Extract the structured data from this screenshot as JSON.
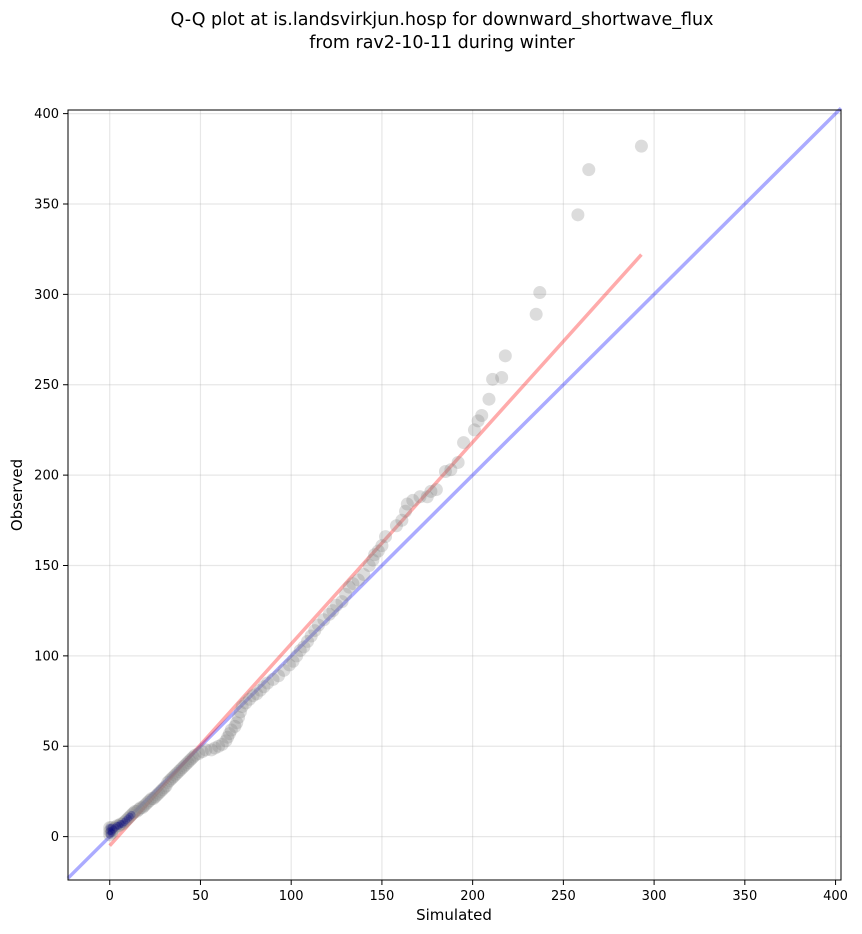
{
  "chart_data": {
    "type": "scatter",
    "title": [
      "Q-Q plot at is.landsvirkjun.hosp for downward_shortwave_flux",
      "from rav2-10-11 during winter"
    ],
    "xlabel": "Simulated",
    "ylabel": "Observed",
    "xlim": [
      -23,
      403
    ],
    "ylim": [
      -24,
      402
    ],
    "xticks": [
      0,
      50,
      100,
      150,
      200,
      250,
      300,
      350,
      400
    ],
    "yticks": [
      0,
      50,
      100,
      150,
      200,
      250,
      300,
      350,
      400
    ],
    "grid": true,
    "reference_line": {
      "name": "1:1",
      "color": "#0000ff",
      "x": [
        -23,
        403
      ],
      "y": [
        -23,
        403
      ]
    },
    "fit_line": {
      "color": "#ff0000",
      "x": [
        0,
        293
      ],
      "y": [
        -5,
        322
      ]
    },
    "points_color": "#808080",
    "low_value_color": "#000080",
    "points": [
      [
        0,
        1
      ],
      [
        1,
        2
      ],
      [
        0,
        3
      ],
      [
        1,
        3
      ],
      [
        2,
        4
      ],
      [
        0,
        5
      ],
      [
        1,
        5
      ],
      [
        3,
        5
      ],
      [
        4,
        6
      ],
      [
        5,
        6
      ],
      [
        6,
        7
      ],
      [
        7,
        7
      ],
      [
        8,
        8
      ],
      [
        9,
        9
      ],
      [
        10,
        10
      ],
      [
        11,
        11
      ],
      [
        12,
        12
      ],
      [
        13,
        13
      ],
      [
        14,
        14
      ],
      [
        15,
        14
      ],
      [
        16,
        15
      ],
      [
        17,
        16
      ],
      [
        18,
        16
      ],
      [
        19,
        17
      ],
      [
        20,
        18
      ],
      [
        21,
        19
      ],
      [
        22,
        20
      ],
      [
        23,
        21
      ],
      [
        24,
        21
      ],
      [
        25,
        22
      ],
      [
        26,
        23
      ],
      [
        27,
        24
      ],
      [
        28,
        25
      ],
      [
        29,
        26
      ],
      [
        30,
        27
      ],
      [
        31,
        28
      ],
      [
        32,
        30
      ],
      [
        33,
        31
      ],
      [
        34,
        32
      ],
      [
        35,
        33
      ],
      [
        36,
        34
      ],
      [
        37,
        35
      ],
      [
        38,
        36
      ],
      [
        39,
        37
      ],
      [
        40,
        38
      ],
      [
        41,
        39
      ],
      [
        42,
        40
      ],
      [
        43,
        41
      ],
      [
        44,
        42
      ],
      [
        45,
        43
      ],
      [
        46,
        44
      ],
      [
        47,
        45
      ],
      [
        49,
        46
      ],
      [
        51,
        47
      ],
      [
        53,
        48
      ],
      [
        56,
        48
      ],
      [
        58,
        49
      ],
      [
        60,
        50
      ],
      [
        62,
        51
      ],
      [
        64,
        53
      ],
      [
        65,
        55
      ],
      [
        66,
        57
      ],
      [
        67,
        59
      ],
      [
        69,
        61
      ],
      [
        70,
        63
      ],
      [
        71,
        66
      ],
      [
        72,
        69
      ],
      [
        73,
        72
      ],
      [
        75,
        74
      ],
      [
        77,
        76
      ],
      [
        79,
        78
      ],
      [
        81,
        79
      ],
      [
        83,
        81
      ],
      [
        85,
        83
      ],
      [
        87,
        85
      ],
      [
        90,
        87
      ],
      [
        93,
        89
      ],
      [
        96,
        92
      ],
      [
        99,
        95
      ],
      [
        101,
        97
      ],
      [
        103,
        100
      ],
      [
        105,
        103
      ],
      [
        107,
        105
      ],
      [
        109,
        108
      ],
      [
        111,
        111
      ],
      [
        113,
        114
      ],
      [
        115,
        117
      ],
      [
        118,
        120
      ],
      [
        121,
        123
      ],
      [
        123,
        125
      ],
      [
        125,
        128
      ],
      [
        128,
        130
      ],
      [
        130,
        134
      ],
      [
        132,
        138
      ],
      [
        134,
        140
      ],
      [
        137,
        142
      ],
      [
        140,
        145
      ],
      [
        143,
        150
      ],
      [
        145,
        153
      ],
      [
        146,
        156
      ],
      [
        148,
        158
      ],
      [
        150,
        161
      ],
      [
        152,
        166
      ],
      [
        158,
        172
      ],
      [
        161,
        175
      ],
      [
        163,
        180
      ],
      [
        164,
        184
      ],
      [
        167,
        186
      ],
      [
        171,
        188
      ],
      [
        175,
        188
      ],
      [
        177,
        191
      ],
      [
        180,
        192
      ],
      [
        185,
        202
      ],
      [
        188,
        203
      ],
      [
        192,
        207
      ],
      [
        195,
        218
      ],
      [
        201,
        225
      ],
      [
        203,
        230
      ],
      [
        205,
        233
      ],
      [
        209,
        242
      ],
      [
        211,
        253
      ],
      [
        216,
        254
      ],
      [
        218,
        266
      ],
      [
        235,
        289
      ],
      [
        237,
        301
      ],
      [
        258,
        344
      ],
      [
        264,
        369
      ],
      [
        293,
        382
      ]
    ]
  }
}
